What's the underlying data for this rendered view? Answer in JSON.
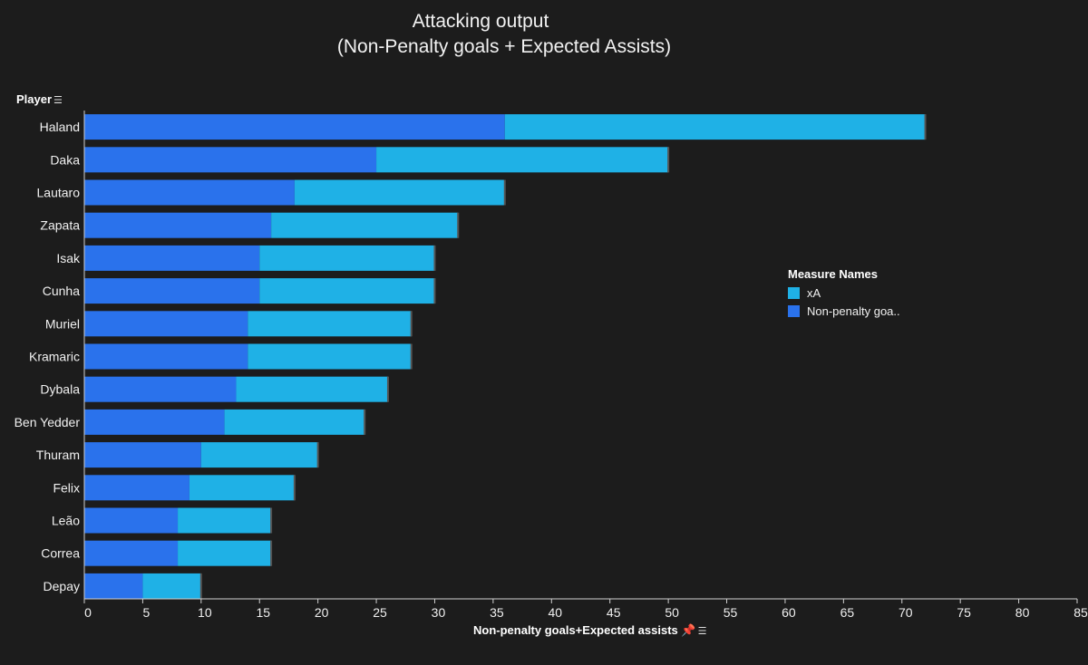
{
  "chart_data": {
    "type": "bar",
    "orientation": "horizontal",
    "stacked": true,
    "title": "Attacking output",
    "subtitle": "(Non-Penalty goals + Expected Assists)",
    "categories": [
      "Haland",
      "Daka",
      "Lautaro",
      "Zapata",
      "Isak",
      "Cunha",
      "Muriel",
      "Kramaric",
      "Dybala",
      "Ben Yedder",
      "Thuram",
      "Felix",
      "Leão",
      "Correa",
      "Depay"
    ],
    "series": [
      {
        "name": "Non-penalty goa..",
        "color": "#2a72ec",
        "values": [
          36,
          25,
          18,
          16,
          15,
          15,
          14,
          14,
          13,
          12,
          10,
          9,
          8,
          8,
          5
        ]
      },
      {
        "name": "xA",
        "color": "#1fb1e6",
        "values": [
          36,
          25,
          18,
          16,
          15,
          15,
          14,
          14,
          13,
          12,
          10,
          9,
          8,
          8,
          5
        ]
      }
    ],
    "ylabel": "Player",
    "xlabel": "Non-penalty goals+Expected assists",
    "xlim": [
      0,
      85
    ],
    "xticks": [
      "0",
      "5",
      "10",
      "15",
      "20",
      "25",
      "30",
      "35",
      "40",
      "45",
      "50",
      "55",
      "60",
      "65",
      "70",
      "75",
      "80",
      "85"
    ],
    "legend": {
      "title": "Measure Names",
      "position": "right",
      "items": [
        "xA",
        "Non-penalty goa.."
      ]
    }
  },
  "colors": {
    "background": "#1c1c1c",
    "goals": "#2a72ec",
    "xa": "#1fb1e6",
    "axis": "#cfcfcf"
  },
  "icons": {
    "sort": "sort-icon",
    "pin": "pin-icon"
  }
}
